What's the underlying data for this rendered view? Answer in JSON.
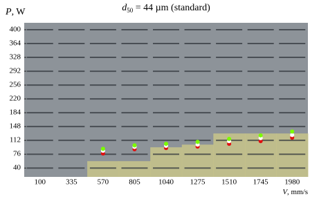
{
  "chart_data": {
    "type": "scatter",
    "title": {
      "symbol": "d",
      "subscript": "50",
      "text": " = 44 µm (standard)"
    },
    "y_label": {
      "symbol": "P",
      "unit": ", W"
    },
    "x_label": {
      "symbol": "V",
      "unit": ", mm/s"
    },
    "categories": [
      "100",
      "335",
      "570",
      "805",
      "1040",
      "1275",
      "1510",
      "1745",
      "1980"
    ],
    "ylim": [
      17,
      418
    ],
    "yticks": [
      400,
      364,
      328,
      292,
      256,
      220,
      184,
      148,
      112,
      76,
      40
    ],
    "shaded": {
      "color": "#c8c48a",
      "values": [
        null,
        null,
        58,
        58,
        94,
        101,
        130,
        130,
        130
      ]
    },
    "series": [
      {
        "color": "#e01010",
        "values": [
          null,
          null,
          78,
          89,
          92,
          96,
          103,
          110,
          119
        ]
      },
      {
        "color": "#ffffff",
        "values": [
          null,
          null,
          85,
          95,
          98,
          101,
          110,
          118,
          126
        ]
      },
      {
        "color": "#7cfc00",
        "values": [
          null,
          null,
          90,
          99,
          103,
          108,
          116,
          125,
          135
        ]
      }
    ]
  }
}
